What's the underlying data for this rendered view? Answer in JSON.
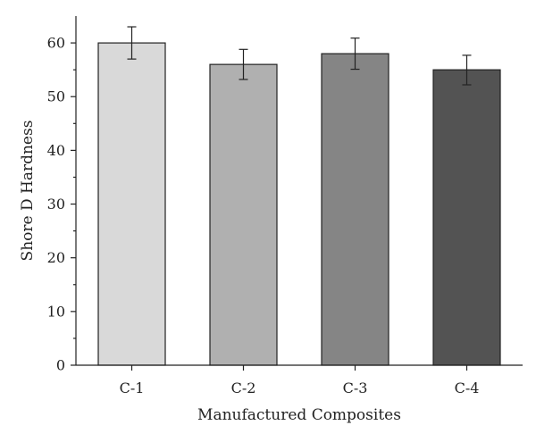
{
  "chart_data": {
    "type": "bar",
    "title": "",
    "xlabel": "Manufactured Composites",
    "ylabel": "Shore D Hardness",
    "categories": [
      "C-1",
      "C-2",
      "C-3",
      "C-4"
    ],
    "values": [
      60,
      56,
      58,
      55
    ],
    "error_high": [
      63,
      58.8,
      60.9,
      57.7
    ],
    "error_low": [
      57,
      53.2,
      55.1,
      52.2
    ],
    "bar_colors": [
      "#d9d9d9",
      "#b0b0b0",
      "#858585",
      "#535353"
    ],
    "ylim": [
      0,
      65
    ],
    "yticks": [
      0,
      10,
      20,
      30,
      40,
      50,
      60
    ],
    "grid": false,
    "legend": "none"
  }
}
